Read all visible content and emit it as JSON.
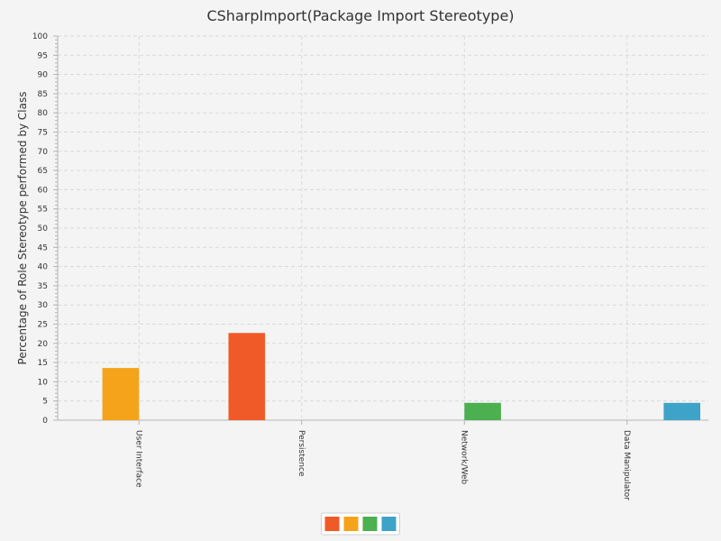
{
  "chart_data": {
    "type": "bar",
    "title": "CSharpImport(Package Import Stereotype)",
    "ylabel": "Percentage of Role Stereotype performed by Class",
    "xlabel": "",
    "ylim": [
      0,
      100
    ],
    "ytick_step": 5,
    "categories": [
      "User Interface",
      "Persistence",
      "Network/Web",
      "Data Manipulator"
    ],
    "series": [
      {
        "color": "#f05a28",
        "values": [
          0,
          22.7,
          0,
          0
        ]
      },
      {
        "color": "#f5a31a",
        "values": [
          13.6,
          0,
          0,
          0
        ]
      },
      {
        "color": "#4caf50",
        "values": [
          0,
          0,
          4.5,
          0
        ]
      },
      {
        "color": "#3ea3c8",
        "values": [
          0,
          0,
          0,
          4.5
        ]
      }
    ],
    "grid": true,
    "legend_position": "bottom-center"
  }
}
